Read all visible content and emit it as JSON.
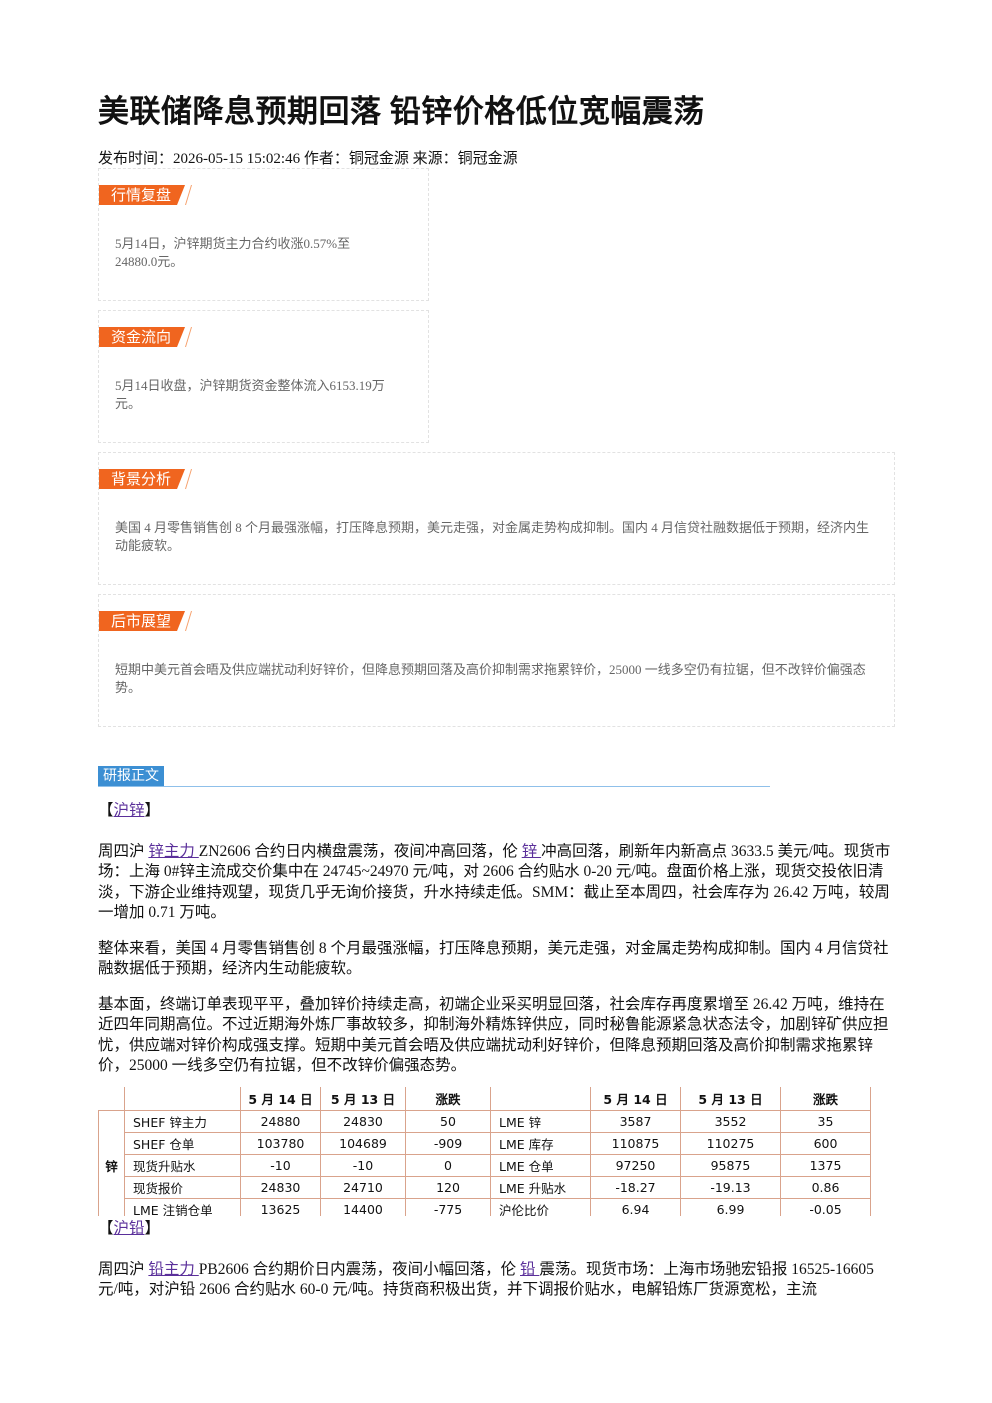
{
  "title": "美联储降息预期回落 铅锌价格低位宽幅震荡",
  "meta": "发布时间：2026-05-15 15:02:46 作者：铜冠金源 来源：铜冠金源",
  "sections": [
    {
      "tag": "行情复盘",
      "text": "5月14日，沪锌期货主力合约收涨0.57%至24880.0元。"
    },
    {
      "tag": "资金流向",
      "text": "5月14日收盘，沪锌期货资金整体流入6153.19万元。"
    },
    {
      "tag": "背景分析",
      "text": "美国 4 月零售销售创 8 个月最强涨幅，打压降息预期，美元走强，对金属走势构成抑制。国内 4 月信贷社融数据低于预期，经济内生动能疲软。"
    },
    {
      "tag": "后市展望",
      "text": "短期中美元首会晤及供应端扰动利好锌价，但降息预期回落及高价抑制需求拖累锌价，25000 一线多空仍有拉锯，但不改锌价偏强态势。"
    }
  ],
  "report_tag": "研报正文",
  "zinc": {
    "heading": {
      "open": "【",
      "link": "沪锌",
      "close": "】"
    },
    "paragraphs": [
      [
        {
          "text": "周四沪 "
        },
        {
          "text": "锌主力 ",
          "link": true
        },
        {
          "text": "ZN2606 合约日内横盘震荡，夜间冲高回落，伦 "
        },
        {
          "text": "锌 ",
          "link": true
        },
        {
          "text": "冲高回落，刷新年内新高点 3633.5 美元/吨。现货市场：上海 0#锌主流成交价集中在 24745~24970 元/吨，对 2606 合约贴水 0-20 元/吨。盘面价格上涨，现货交投依旧清淡，下游企业维持观望，现货几乎无询价接货，升水持续走低。SMM：截止至本周四，社会库存为 26.42 万吨，较周一增加 0.71 万吨。"
        }
      ],
      [
        {
          "text": "整体来看，美国 4 月零售销售创 8 个月最强涨幅，打压降息预期，美元走强，对金属走势构成抑制。国内 4 月信贷社融数据低于预期，经济内生动能疲软。"
        }
      ],
      [
        {
          "text": "基本面，终端订单表现平平，叠加锌价持续走高，初端企业采买明显回落，社会库存再度累增至 26.42 万吨，维持在近四年同期高位。不过近期海外炼厂事故较多，抑制海外精炼锌供应，同时秘鲁能源紧急状态法令，加剧锌矿供应担忧，供应端对锌价构成强支撑。短期中美元首会晤及供应端扰动利好锌价，但降息预期回落及高价抑制需求拖累锌价，25000 一线多空仍有拉锯，但不改锌价偏强态势。"
        }
      ]
    ],
    "table": {
      "label": "锌",
      "header": [
        "5 月 14 日",
        "5 月 13 日",
        "涨跌",
        "5 月 14 日",
        "5 月 13 日",
        "涨跌"
      ],
      "rows": [
        [
          "SHEF 锌主力",
          "24880",
          "24830",
          "50",
          "LME 锌",
          "3587",
          "3552",
          "35"
        ],
        [
          "SHEF 仓单",
          "103780",
          "104689",
          "-909",
          "LME 库存",
          "110875",
          "110275",
          "600"
        ],
        [
          "现货升贴水",
          "-10",
          "-10",
          "0",
          "LME 仓单",
          "97250",
          "95875",
          "1375"
        ],
        [
          "现货报价",
          "24830",
          "24710",
          "120",
          "LME 升贴水",
          "-18.27",
          "-19.13",
          "0.86"
        ],
        [
          "LME 注销仓单",
          "13625",
          "14400",
          "-775",
          "沪伦比价",
          "6.94",
          "6.99",
          "-0.05"
        ]
      ]
    }
  },
  "lead": {
    "heading": {
      "open": "【",
      "link": "沪铅",
      "close": "】"
    },
    "paragraphs": [
      [
        {
          "text": "周四沪 "
        },
        {
          "text": "铅主力 ",
          "link": true
        },
        {
          "text": "PB2606 合约期价日内震荡，夜间小幅回落，伦 "
        },
        {
          "text": "铅 ",
          "link": true
        },
        {
          "text": "震荡。现货市场：上海市场驰宏铅报 16525-16605 元/吨，对沪铅 2606 合约贴水 60-0 元/吨。持货商积极出货，并下调报价贴水，电解铅炼厂货源宽松，主流"
        }
      ]
    ]
  }
}
